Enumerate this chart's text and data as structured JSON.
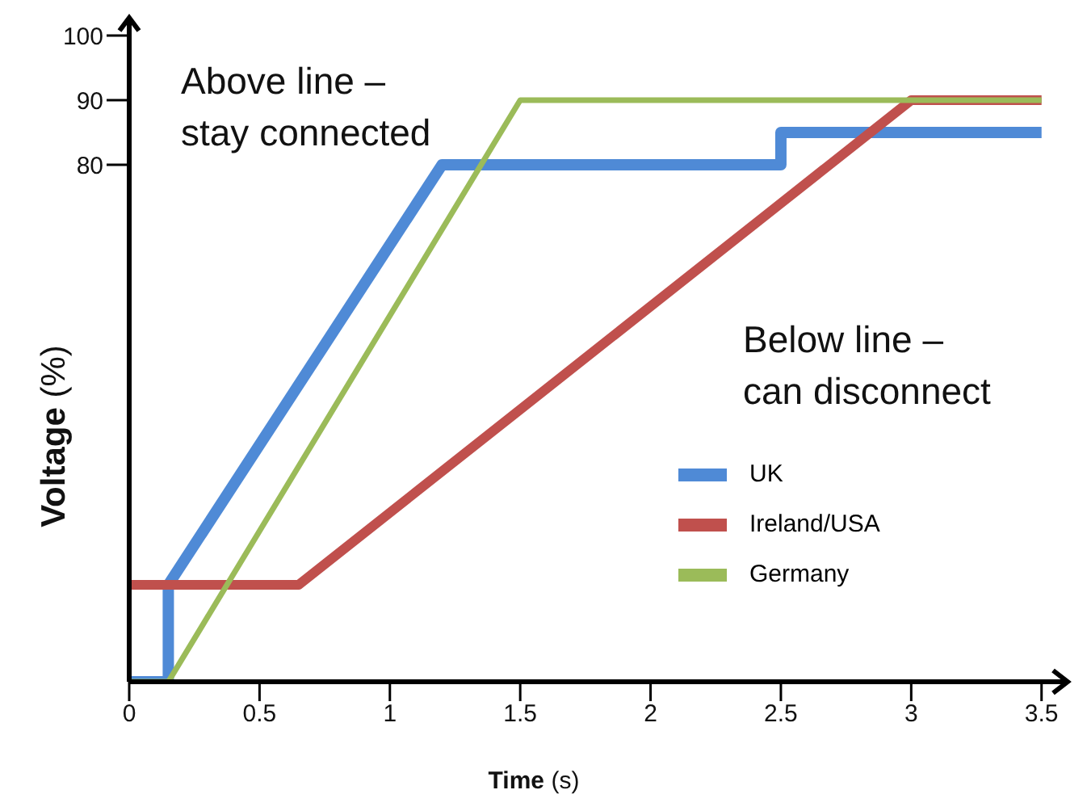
{
  "chart_data": {
    "type": "line",
    "xlabel": "Time (s)",
    "ylabel": "Voltage (%)",
    "annotations": [
      "Above line –\nstay connected",
      "Below line –\ncan disconnect"
    ],
    "series": [
      {
        "name": "UK",
        "color": "#4f8ad6",
        "x": [
          0,
          0.15,
          0.15,
          1.2,
          2.5,
          2.5,
          3.5
        ],
        "values": [
          0,
          0,
          15,
          80,
          80,
          85,
          85
        ]
      },
      {
        "name": "Ireland/USA",
        "color": "#c0504d",
        "x": [
          0,
          0.65,
          3,
          3.5
        ],
        "values": [
          15,
          15,
          90,
          90
        ]
      },
      {
        "name": "Germany",
        "color": "#9bbb59",
        "x": [
          0,
          0.15,
          1.5,
          3.5
        ],
        "values": [
          0,
          0,
          90,
          90
        ]
      }
    ],
    "xlim": [
      0,
      3.6
    ],
    "xticks": [
      0,
      0.5,
      1,
      1.5,
      2,
      2.5,
      3,
      3.5
    ],
    "ylim": [
      0,
      100
    ],
    "yticks": [
      80,
      90,
      100
    ],
    "grid": false,
    "legend": "right",
    "marker": "none",
    "line_style": "solid"
  }
}
